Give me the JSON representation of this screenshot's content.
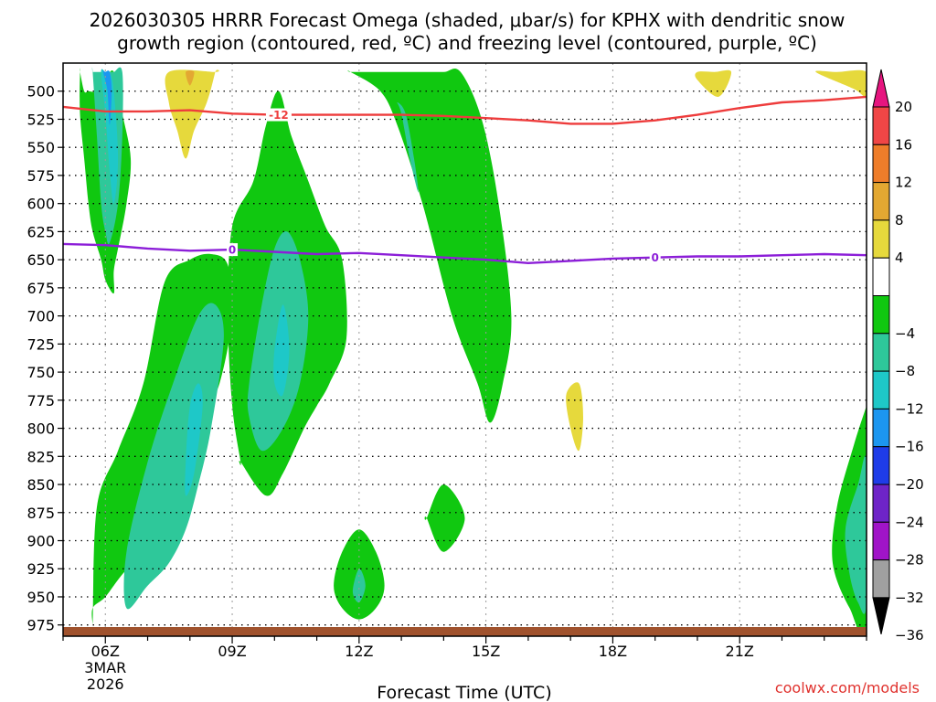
{
  "chart_data": {
    "type": "heatmap",
    "title_line1": "2026030305 HRRR Forecast Omega (shaded, μbar/s) for KPHX with dendritic snow",
    "title_line2": "growth region (contoured, red, ºC) and freezing level (contoured, purple, ºC)",
    "xlabel": "Forecast Time (UTC)",
    "credit": "coolwx.com/models",
    "x_hour_range": [
      5,
      24
    ],
    "p_range": [
      475,
      985
    ],
    "y_ticks": [
      500,
      525,
      550,
      575,
      600,
      625,
      650,
      675,
      700,
      725,
      750,
      775,
      800,
      825,
      850,
      875,
      900,
      925,
      950,
      975
    ],
    "x_ticks": [
      {
        "hour": 6,
        "label": "06Z",
        "sub1": "3MAR",
        "sub2": "2026"
      },
      {
        "hour": 9,
        "label": "09Z"
      },
      {
        "hour": 12,
        "label": "12Z"
      },
      {
        "hour": 15,
        "label": "15Z"
      },
      {
        "hour": 18,
        "label": "18Z"
      },
      {
        "hour": 21,
        "label": "21Z"
      }
    ],
    "colorbar": {
      "labels": [
        "20",
        "16",
        "12",
        "8",
        "4",
        "−4",
        "−8",
        "−12",
        "−16",
        "−20",
        "−24",
        "−28",
        "−32",
        "−36"
      ],
      "bins": [
        {
          "lo": 16,
          "hi": 20,
          "color": "#f04646"
        },
        {
          "lo": 12,
          "hi": 16,
          "color": "#ee7d2a"
        },
        {
          "lo": 8,
          "hi": 12,
          "color": "#e3a832"
        },
        {
          "lo": 4,
          "hi": 8,
          "color": "#e6d93c"
        },
        {
          "lo": -4,
          "hi": 4,
          "color": "#ffffff"
        },
        {
          "lo": -8,
          "hi": -4,
          "color": "#10c810"
        },
        {
          "lo": -12,
          "hi": -8,
          "color": "#2ec89a"
        },
        {
          "lo": -16,
          "hi": -12,
          "color": "#1ec8c8"
        },
        {
          "lo": -20,
          "hi": -16,
          "color": "#1c96f0"
        },
        {
          "lo": -24,
          "hi": -20,
          "color": "#1e3ce8"
        },
        {
          "lo": -28,
          "hi": -24,
          "color": "#6e24c8"
        },
        {
          "lo": -32,
          "hi": -28,
          "color": "#a014c8"
        },
        {
          "lo": -36,
          "hi": -32,
          "color": "#a0a0a0"
        }
      ],
      "top_color": "#e6157f",
      "bottom_color": "#000000"
    },
    "regions": [
      {
        "omega_bin": "-8 to -4",
        "color": "#10c810",
        "hours": [
          5.4,
          5.4,
          5.5,
          5.6,
          5.7,
          5.9,
          6.0,
          6.2,
          6.2,
          6.3,
          6.5,
          6.6,
          6.4,
          6.2,
          6.0,
          5.8,
          5.6,
          5.5,
          5.4
        ],
        "pressures": [
          483,
          520,
          560,
          600,
          625,
          650,
          668,
          680,
          660,
          640,
          600,
          560,
          520,
          483,
          490,
          500,
          500,
          500,
          483
        ]
      },
      {
        "omega_bin": "-12 to -8",
        "color": "#2ec89a",
        "hours": [
          5.7,
          5.8,
          5.9,
          6.0,
          6.1,
          6.3,
          6.4,
          6.4,
          6.2,
          6.1,
          5.9,
          5.8,
          5.7
        ],
        "pressures": [
          483,
          540,
          600,
          625,
          635,
          600,
          540,
          483,
          483,
          483,
          483,
          483,
          483
        ]
      },
      {
        "omega_bin": "-16 to -12",
        "color": "#1ec8c8",
        "hours": [
          5.9,
          6.0,
          6.1,
          6.2,
          6.3,
          6.2,
          6.1,
          6.0
        ],
        "pressures": [
          483,
          520,
          570,
          600,
          560,
          500,
          483,
          483
        ]
      },
      {
        "omega_bin": "-20 to -16",
        "color": "#1c96f0",
        "hours": [
          5.95,
          6.05,
          6.1,
          6.15,
          6.1,
          6.0
        ],
        "pressures": [
          483,
          500,
          530,
          500,
          483,
          483
        ]
      },
      {
        "omega_bin": "4 to 8",
        "color": "#e6d93c",
        "hours": [
          7.5,
          7.5,
          7.7,
          7.9,
          8.1,
          8.4,
          8.6,
          8.6
        ],
        "pressures": [
          483,
          510,
          535,
          560,
          535,
          510,
          483,
          483
        ]
      },
      {
        "omega_bin": "8 to 12",
        "color": "#e3a832",
        "hours": [
          7.9,
          8.0,
          8.1
        ],
        "pressures": [
          483,
          495,
          483
        ]
      },
      {
        "omega_bin": "-8 to -4",
        "color": "#10c810",
        "hours": [
          5.7,
          5.7,
          6.0,
          6.4,
          6.9,
          7.4,
          7.9,
          8.3,
          8.7,
          9.0,
          8.9,
          8.5,
          8.0,
          7.4,
          6.9,
          6.3,
          5.8,
          5.7
        ],
        "pressures": [
          975,
          960,
          950,
          930,
          910,
          870,
          830,
          790,
          760,
          700,
          655,
          645,
          650,
          670,
          760,
          820,
          870,
          975
        ]
      },
      {
        "omega_bin": "-12 to -8",
        "color": "#2ec89a",
        "hours": [
          6.5,
          7.0,
          7.5,
          7.9,
          8.2,
          8.5,
          8.8,
          8.6,
          8.2,
          7.6,
          7.0,
          6.5
        ],
        "pressures": [
          960,
          940,
          920,
          890,
          850,
          800,
          720,
          690,
          700,
          760,
          830,
          910
        ]
      },
      {
        "omega_bin": "-16 to -12",
        "color": "#1ec8c8",
        "hours": [
          7.9,
          8.1,
          8.3,
          8.2,
          8.0,
          7.9
        ],
        "pressures": [
          860,
          840,
          780,
          760,
          780,
          830
        ]
      },
      {
        "omega_bin": "-8 to -4",
        "color": "#10c810",
        "hours": [
          9.2,
          9.8,
          10.2,
          10.7,
          11.0,
          11.3,
          11.7,
          11.6,
          11.2,
          10.8,
          10.4,
          10.1,
          9.8,
          9.5,
          9.0,
          8.9,
          9.0,
          9.2
        ],
        "pressures": [
          830,
          860,
          840,
          800,
          780,
          760,
          720,
          650,
          620,
          580,
          540,
          500,
          530,
          580,
          620,
          700,
          780,
          830
        ]
      },
      {
        "omega_bin": "-12 to -8",
        "color": "#2ec89a",
        "hours": [
          9.4,
          9.7,
          10.2,
          10.6,
          10.8,
          10.6,
          10.3,
          10.0,
          9.7,
          9.4
        ],
        "pressures": [
          790,
          820,
          800,
          760,
          700,
          650,
          625,
          640,
          690,
          760
        ]
      },
      {
        "omega_bin": "-16 to -12",
        "color": "#1ec8c8",
        "hours": [
          10.0,
          10.2,
          10.35,
          10.2,
          10.0
        ],
        "pressures": [
          760,
          770,
          730,
          690,
          730
        ]
      },
      {
        "omega_bin": "-8 to -4",
        "color": "#10c810",
        "hours": [
          11.8,
          12.5,
          12.9,
          13.5,
          14.2,
          14.8,
          15.1,
          15.4,
          15.6,
          15.3,
          14.9,
          14.4,
          14.0,
          13.5,
          12.9,
          12.6,
          12.2,
          11.8
        ],
        "pressures": [
          483,
          500,
          530,
          600,
          700,
          760,
          795,
          760,
          700,
          600,
          525,
          483,
          483,
          483,
          483,
          483,
          483,
          483
        ]
      },
      {
        "omega_bin": "-12 to -8",
        "color": "#2ec89a",
        "hours": [
          12.9,
          13.1,
          13.3,
          13.4,
          13.2,
          13.0
        ],
        "pressures": [
          510,
          520,
          560,
          590,
          560,
          520
        ]
      },
      {
        "omega_bin": "-8 to -4",
        "color": "#10c810",
        "hours": [
          11.4,
          11.6,
          12.0,
          12.4,
          12.6,
          12.4,
          12.0,
          11.6
        ],
        "pressures": [
          940,
          960,
          970,
          960,
          940,
          910,
          890,
          910
        ]
      },
      {
        "omega_bin": "-12 to -8",
        "color": "#2ec89a",
        "hours": [
          11.85,
          12.0,
          12.15,
          12.0
        ],
        "pressures": [
          945,
          955,
          940,
          925
        ]
      },
      {
        "omega_bin": "-8 to -4",
        "color": "#10c810",
        "hours": [
          13.6,
          14.0,
          14.5,
          14.0,
          13.6
        ],
        "pressures": [
          880,
          910,
          880,
          850,
          880
        ]
      },
      {
        "omega_bin": "4 to 8",
        "color": "#e6d93c",
        "hours": [
          16.9,
          17.2,
          17.3,
          17.2,
          17.0
        ],
        "pressures": [
          770,
          760,
          790,
          820,
          800
        ]
      },
      {
        "omega_bin": "4 to 8",
        "color": "#e6d93c",
        "hours": [
          20.0,
          20.4,
          20.8,
          20.5,
          20.0
        ],
        "pressures": [
          483,
          483,
          483,
          505,
          490
        ]
      },
      {
        "omega_bin": "4 to 8",
        "color": "#e6d93c",
        "hours": [
          22.8,
          23.3,
          24.0,
          24.0,
          23.7
        ],
        "pressures": [
          483,
          483,
          483,
          505,
          498
        ]
      },
      {
        "omega_bin": "-8 to -4",
        "color": "#10c810",
        "hours": [
          24.0,
          24.0,
          23.6,
          23.2,
          23.3,
          23.7,
          24.0
        ],
        "pressures": [
          780,
          975,
          960,
          920,
          870,
          815,
          780
        ]
      },
      {
        "omega_bin": "-12 to -8",
        "color": "#2ec89a",
        "hours": [
          24.0,
          23.8,
          23.5,
          23.6,
          23.8,
          24.0
        ],
        "pressures": [
          830,
          850,
          890,
          930,
          955,
          955
        ]
      }
    ],
    "contours": [
      {
        "name": "dendritic snow growth",
        "value": -12,
        "label": "-12",
        "color": "#ee3c3c",
        "label_hour": 10.1,
        "hours": [
          5.0,
          6.0,
          7.0,
          8.0,
          9.0,
          10.0,
          11.0,
          12.0,
          13.0,
          14.0,
          15.0,
          16.0,
          17.0,
          18.0,
          19.0,
          20.0,
          21.0,
          22.0,
          23.0,
          24.0
        ],
        "pressures": [
          514,
          518,
          518,
          517,
          520,
          521,
          521,
          521,
          521,
          522,
          524,
          526,
          529,
          529,
          526,
          521,
          515,
          510,
          508,
          505
        ]
      },
      {
        "name": "freezing level",
        "value": 0,
        "label": "0",
        "color": "#8c1ed8",
        "label_hour": 9.0,
        "hours": [
          5.0,
          6.0,
          7.0,
          8.0,
          9.0,
          10.0,
          11.0,
          12.0,
          13.0,
          14.0,
          15.0,
          16.0,
          17.0,
          18.0,
          19.0,
          20.0,
          21.0,
          22.0,
          23.0,
          24.0
        ],
        "pressures": [
          636,
          637,
          640,
          642,
          641,
          643,
          645,
          644,
          646,
          648,
          650,
          653,
          651,
          649,
          648,
          647,
          647,
          646,
          645,
          646
        ],
        "label_hour_2": 19.0
      }
    ]
  }
}
